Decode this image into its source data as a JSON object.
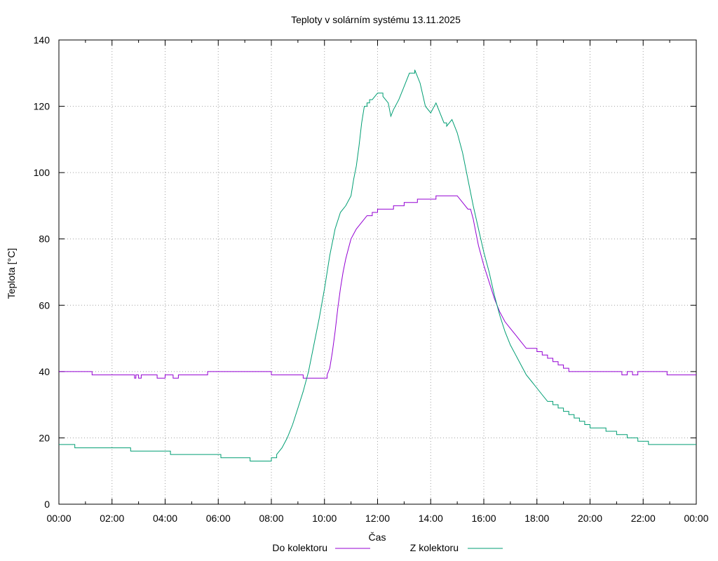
{
  "chart_data": {
    "type": "line",
    "title": "Teploty v solárním systému 13.11.2025",
    "xlabel": "Čas",
    "ylabel": "Teplota [°C]",
    "xlim": [
      0,
      24
    ],
    "ylim": [
      0,
      140
    ],
    "x_ticks": [
      {
        "value": 0,
        "label": "00:00"
      },
      {
        "value": 2,
        "label": "02:00"
      },
      {
        "value": 4,
        "label": "04:00"
      },
      {
        "value": 6,
        "label": "06:00"
      },
      {
        "value": 8,
        "label": "08:00"
      },
      {
        "value": 10,
        "label": "10:00"
      },
      {
        "value": 12,
        "label": "12:00"
      },
      {
        "value": 14,
        "label": "14:00"
      },
      {
        "value": 16,
        "label": "16:00"
      },
      {
        "value": 18,
        "label": "18:00"
      },
      {
        "value": 20,
        "label": "20:00"
      },
      {
        "value": 22,
        "label": "22:00"
      },
      {
        "value": 24,
        "label": "00:00"
      }
    ],
    "y_ticks": [
      {
        "value": 0,
        "label": "0"
      },
      {
        "value": 20,
        "label": "20"
      },
      {
        "value": 40,
        "label": "40"
      },
      {
        "value": 60,
        "label": "60"
      },
      {
        "value": 80,
        "label": "80"
      },
      {
        "value": 100,
        "label": "100"
      },
      {
        "value": 120,
        "label": "120"
      },
      {
        "value": 140,
        "label": "140"
      }
    ],
    "grid": true,
    "legend_position": "bottom",
    "series": [
      {
        "name": "Do kolektoru",
        "color": "#9400d3",
        "x": [
          0,
          1.2,
          1.25,
          2.8,
          2.85,
          2.9,
          3.0,
          3.1,
          3.3,
          3.5,
          3.6,
          3.7,
          3.9,
          4.0,
          4.2,
          4.3,
          4.5,
          5.5,
          5.6,
          7.0,
          7.9,
          8.0,
          9.0,
          9.2,
          10.0,
          10.1,
          10.2,
          10.3,
          10.4,
          10.5,
          10.6,
          10.7,
          10.8,
          10.9,
          11.0,
          11.2,
          11.4,
          11.6,
          11.8,
          12.0,
          12.2,
          12.4,
          12.6,
          12.8,
          13.0,
          13.2,
          13.5,
          13.8,
          14.0,
          14.2,
          14.5,
          14.8,
          15.0,
          15.2,
          15.4,
          15.5,
          15.6,
          15.7,
          15.8,
          15.9,
          16.0,
          16.2,
          16.4,
          16.6,
          16.8,
          17.0,
          17.2,
          17.4,
          17.6,
          17.8,
          18.0,
          18.2,
          18.4,
          18.6,
          18.8,
          19.0,
          19.2,
          20.0,
          21.0,
          21.2,
          21.4,
          21.6,
          21.8,
          22.0,
          22.2,
          22.8,
          22.9,
          24
        ],
        "values": [
          40,
          40,
          39,
          39,
          38,
          39,
          38,
          39,
          39,
          39,
          39,
          38,
          38,
          39,
          39,
          38,
          39,
          39,
          40,
          40,
          40,
          39,
          39,
          38,
          38,
          39,
          41,
          46,
          52,
          59,
          65,
          70,
          74,
          77,
          80,
          83,
          85,
          87,
          88,
          89,
          89,
          89,
          90,
          90,
          91,
          91,
          92,
          92,
          92,
          93,
          93,
          93,
          93,
          91,
          89,
          89,
          86,
          82,
          78,
          75,
          72,
          67,
          62,
          58,
          55,
          53,
          51,
          49,
          47,
          47,
          46,
          45,
          44,
          43,
          42,
          41,
          40,
          40,
          40,
          39,
          40,
          39,
          40,
          40,
          40,
          40,
          39,
          39
        ]
      },
      {
        "name": "Z kolektoru",
        "color": "#009e73",
        "x": [
          0,
          0.5,
          0.6,
          2.6,
          2.7,
          3.0,
          4.0,
          4.2,
          5.0,
          6.0,
          6.1,
          7.0,
          7.2,
          7.8,
          8.0,
          8.2,
          8.4,
          8.6,
          8.8,
          9.0,
          9.2,
          9.4,
          9.6,
          9.8,
          10.0,
          10.2,
          10.4,
          10.6,
          10.8,
          11.0,
          11.1,
          11.2,
          11.3,
          11.4,
          11.5,
          11.6,
          11.7,
          11.8,
          12.0,
          12.2,
          12.4,
          12.5,
          12.6,
          12.8,
          13.0,
          13.2,
          13.4,
          13.6,
          13.8,
          14.0,
          14.2,
          14.4,
          14.5,
          14.6,
          14.8,
          15.0,
          15.2,
          15.4,
          15.6,
          15.8,
          16.0,
          16.2,
          16.4,
          16.6,
          16.8,
          17.0,
          17.2,
          17.4,
          17.6,
          17.8,
          18.0,
          18.2,
          18.4,
          18.6,
          18.8,
          19.0,
          19.2,
          19.4,
          19.6,
          19.8,
          20.0,
          20.2,
          20.4,
          20.6,
          20.8,
          21.0,
          21.2,
          21.4,
          21.6,
          21.8,
          22.0,
          22.2,
          22.4,
          22.6,
          22.8,
          23.0,
          24
        ],
        "values": [
          18,
          18,
          17,
          17,
          16,
          16,
          16,
          15,
          15,
          15,
          14,
          14,
          13,
          13,
          14,
          15,
          17,
          20,
          24,
          29,
          34,
          40,
          48,
          56,
          65,
          75,
          83,
          88,
          90,
          93,
          98,
          102,
          108,
          115,
          120,
          121,
          122,
          122,
          124,
          123,
          121,
          117,
          119,
          122,
          126,
          130,
          131,
          127,
          120,
          118,
          121,
          117,
          115,
          114,
          116,
          112,
          106,
          98,
          90,
          83,
          76,
          70,
          63,
          57,
          52,
          48,
          45,
          42,
          39,
          37,
          35,
          33,
          31,
          30,
          29,
          28,
          27,
          26,
          25,
          24,
          23,
          23,
          23,
          22,
          22,
          21,
          21,
          20,
          20,
          19,
          19,
          18,
          18,
          18,
          18,
          18,
          18
        ]
      }
    ]
  }
}
